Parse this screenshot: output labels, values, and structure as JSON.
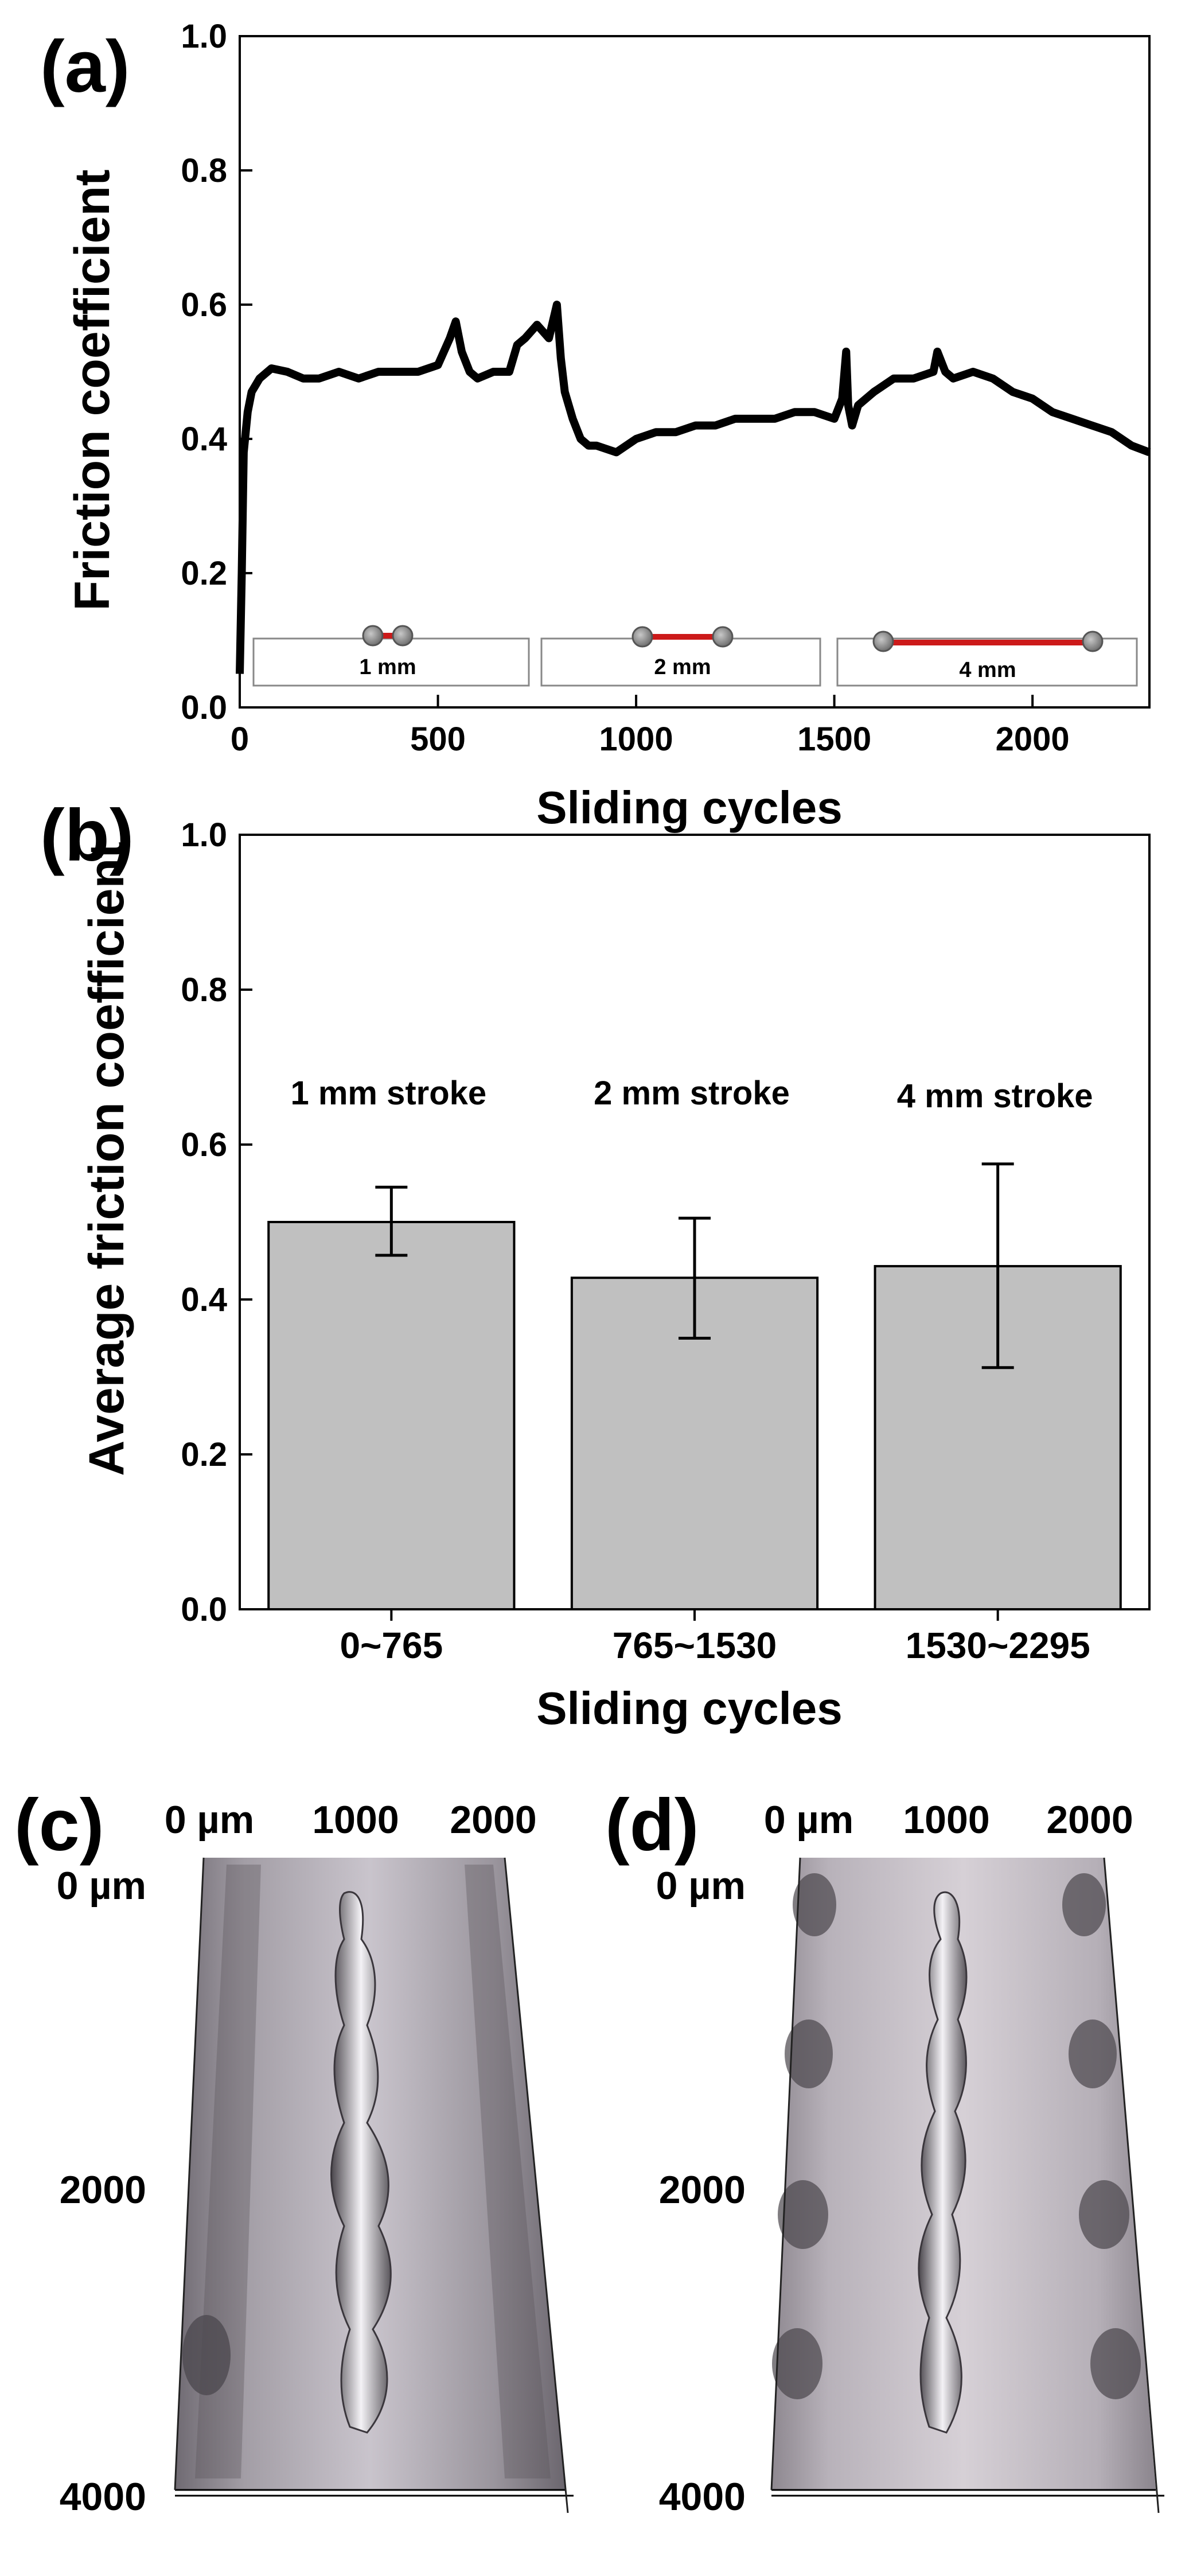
{
  "chart_data": [
    {
      "id": "a",
      "panel_label": "(a)",
      "type": "line",
      "xlabel": "Sliding cycles",
      "ylabel": "Friction coefficient",
      "xlim": [
        0,
        2295
      ],
      "ylim": [
        0.0,
        1.0
      ],
      "xticks": [
        "0",
        "500",
        "1000",
        "1500",
        "2000"
      ],
      "xtick_values": [
        0,
        500,
        1000,
        1500,
        2000
      ],
      "yticks": [
        "0.0",
        "0.2",
        "0.4",
        "0.6",
        "0.8",
        "1.0"
      ],
      "ytick_values": [
        0,
        0.2,
        0.4,
        0.6,
        0.8,
        1.0
      ],
      "series": [
        {
          "name": "Friction coefficient",
          "color": "#000000",
          "x": [
            0,
            5,
            10,
            20,
            30,
            50,
            80,
            120,
            160,
            200,
            250,
            300,
            350,
            400,
            450,
            500,
            530,
            545,
            560,
            580,
            600,
            640,
            680,
            700,
            720,
            750,
            780,
            800,
            810,
            820,
            840,
            860,
            880,
            900,
            950,
            1000,
            1050,
            1100,
            1150,
            1200,
            1250,
            1300,
            1350,
            1400,
            1450,
            1500,
            1520,
            1530,
            1535,
            1545,
            1560,
            1600,
            1650,
            1700,
            1750,
            1760,
            1780,
            1800,
            1850,
            1900,
            1950,
            2000,
            2050,
            2100,
            2150,
            2200,
            2250,
            2295
          ],
          "y": [
            0.05,
            0.2,
            0.38,
            0.44,
            0.47,
            0.49,
            0.505,
            0.5,
            0.49,
            0.49,
            0.5,
            0.49,
            0.5,
            0.5,
            0.5,
            0.51,
            0.55,
            0.575,
            0.53,
            0.5,
            0.49,
            0.5,
            0.5,
            0.54,
            0.55,
            0.57,
            0.55,
            0.6,
            0.52,
            0.47,
            0.43,
            0.4,
            0.39,
            0.39,
            0.38,
            0.4,
            0.41,
            0.41,
            0.42,
            0.42,
            0.43,
            0.43,
            0.43,
            0.44,
            0.44,
            0.43,
            0.46,
            0.53,
            0.45,
            0.42,
            0.45,
            0.47,
            0.49,
            0.49,
            0.5,
            0.53,
            0.5,
            0.49,
            0.5,
            0.49,
            0.47,
            0.46,
            0.44,
            0.43,
            0.42,
            0.41,
            0.39,
            0.38
          ]
        }
      ],
      "insets": [
        {
          "label": "1 mm"
        },
        {
          "label": "2 mm"
        },
        {
          "label": "4 mm"
        }
      ]
    },
    {
      "id": "b",
      "panel_label": "(b)",
      "type": "bar",
      "xlabel": "Sliding cycles",
      "ylabel": "Average friction coefficient",
      "ylim": [
        0.0,
        1.0
      ],
      "yticks": [
        "0.0",
        "0.2",
        "0.4",
        "0.6",
        "0.8",
        "1.0"
      ],
      "ytick_values": [
        0,
        0.2,
        0.4,
        0.6,
        0.8,
        1.0
      ],
      "categories": [
        "0~765",
        "765~1530",
        "1530~2295"
      ],
      "values": [
        0.5,
        0.428,
        0.443
      ],
      "error_low": [
        0.457,
        0.35,
        0.312
      ],
      "error_high": [
        0.545,
        0.505,
        0.575
      ],
      "annotations": [
        "1 mm stroke",
        "2 mm stroke",
        "4 mm stroke"
      ],
      "bar_color": "#c0c0c0"
    }
  ],
  "profiles": {
    "c": {
      "panel_label": "(c)",
      "x_ticks": [
        "0 µm",
        "1000",
        "2000"
      ],
      "y_ticks": [
        "0 µm",
        "2000",
        "4000"
      ]
    },
    "d": {
      "panel_label": "(d)",
      "x_ticks": [
        "0 µm",
        "1000",
        "2000"
      ],
      "y_ticks": [
        "0 µm",
        "2000",
        "4000"
      ]
    }
  }
}
